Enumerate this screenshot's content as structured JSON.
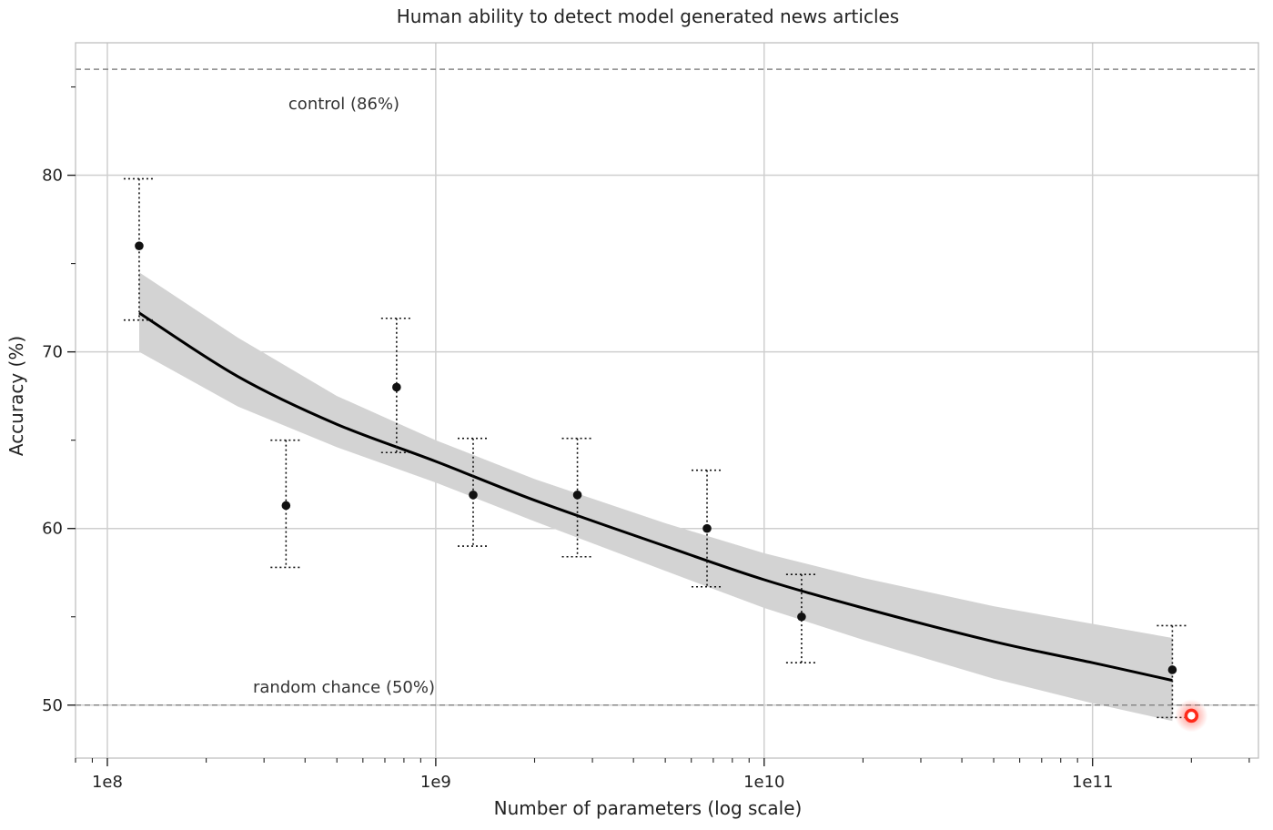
{
  "chart_data": {
    "type": "scatter",
    "title": "Human ability to detect model generated news articles",
    "xlabel": "Number of parameters (log scale)",
    "ylabel": "Accuracy (%)",
    "x_scale": "log",
    "xlim": [
      80000000,
      320000000000
    ],
    "ylim": [
      47,
      87.5
    ],
    "x_tick_labels": [
      "1e8",
      "1e9",
      "1e10",
      "1e11"
    ],
    "x_ticks": [
      100000000,
      1000000000,
      10000000000,
      100000000000
    ],
    "y_ticks": [
      50,
      60,
      70,
      80
    ],
    "grid": true,
    "points": [
      {
        "x": 125000000,
        "y": 76,
        "err_low": 71.8,
        "err_high": 79.8
      },
      {
        "x": 350000000,
        "y": 61.3,
        "err_low": 57.8,
        "err_high": 65
      },
      {
        "x": 760000000,
        "y": 68,
        "err_low": 64.3,
        "err_high": 71.9
      },
      {
        "x": 1300000000,
        "y": 61.9,
        "err_low": 59,
        "err_high": 65.1
      },
      {
        "x": 2700000000,
        "y": 61.9,
        "err_low": 58.4,
        "err_high": 65.1
      },
      {
        "x": 6700000000,
        "y": 60,
        "err_low": 56.7,
        "err_high": 63.3
      },
      {
        "x": 13000000000,
        "y": 55,
        "err_low": 52.4,
        "err_high": 57.4
      },
      {
        "x": 175000000000,
        "y": 52,
        "err_low": 49.3,
        "err_high": 54.5
      }
    ],
    "fit_curve": {
      "x": [
        125000000,
        250000000,
        500000000,
        1000000000,
        2000000000,
        5000000000,
        10000000000,
        20000000000,
        50000000000,
        100000000000,
        175000000000
      ],
      "y": [
        72.2,
        68.6,
        65.9,
        63.8,
        61.6,
        59.0,
        57.1,
        55.5,
        53.6,
        52.4,
        51.4
      ],
      "band_low": [
        70.0,
        66.9,
        64.6,
        62.6,
        60.4,
        57.6,
        55.5,
        53.7,
        51.5,
        50.1,
        49.1
      ],
      "band_high": [
        74.5,
        70.8,
        67.5,
        65.0,
        62.8,
        60.3,
        58.6,
        57.2,
        55.6,
        54.6,
        53.8
      ]
    },
    "reference_lines": [
      {
        "y": 86,
        "label": "control (86%)"
      },
      {
        "y": 50,
        "label": "random chance (50%)"
      }
    ],
    "highlight_marker": {
      "x": 200000000000,
      "y": 49.4
    },
    "colors": {
      "points": "#111111",
      "fit": "#000000",
      "band": "#d3d3d3",
      "grid": "#cfcfcf",
      "reference": "#888888",
      "highlight": "#ff2a1a"
    }
  }
}
